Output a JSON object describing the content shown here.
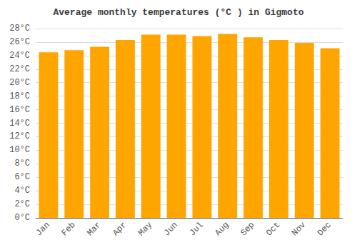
{
  "chart_data": {
    "type": "bar",
    "title": "Average monthly temperatures (°C ) in Gigmoto",
    "categories": [
      "Jan",
      "Feb",
      "Mar",
      "Apr",
      "May",
      "Jun",
      "Jul",
      "Aug",
      "Sep",
      "Oct",
      "Nov",
      "Dec"
    ],
    "values": [
      24.5,
      24.8,
      25.3,
      26.3,
      27.1,
      27.1,
      26.9,
      27.2,
      26.7,
      26.3,
      25.9,
      25.1
    ],
    "color": "#FFA500",
    "ylim": [
      0,
      28
    ],
    "yticks": [
      {
        "value": 0,
        "label": "0°C"
      },
      {
        "value": 2,
        "label": "2°C"
      },
      {
        "value": 4,
        "label": "4°C"
      },
      {
        "value": 6,
        "label": "6°C"
      },
      {
        "value": 8,
        "label": "8°C"
      },
      {
        "value": 10,
        "label": "10°C"
      },
      {
        "value": 12,
        "label": "12°C"
      },
      {
        "value": 14,
        "label": "14°C"
      },
      {
        "value": 16,
        "label": "16°C"
      },
      {
        "value": 18,
        "label": "18°C"
      },
      {
        "value": 20,
        "label": "20°C"
      },
      {
        "value": 22,
        "label": "22°C"
      },
      {
        "value": 24,
        "label": "24°C"
      },
      {
        "value": 26,
        "label": "26°C"
      },
      {
        "value": 28,
        "label": "28°C"
      }
    ],
    "grid": true
  }
}
